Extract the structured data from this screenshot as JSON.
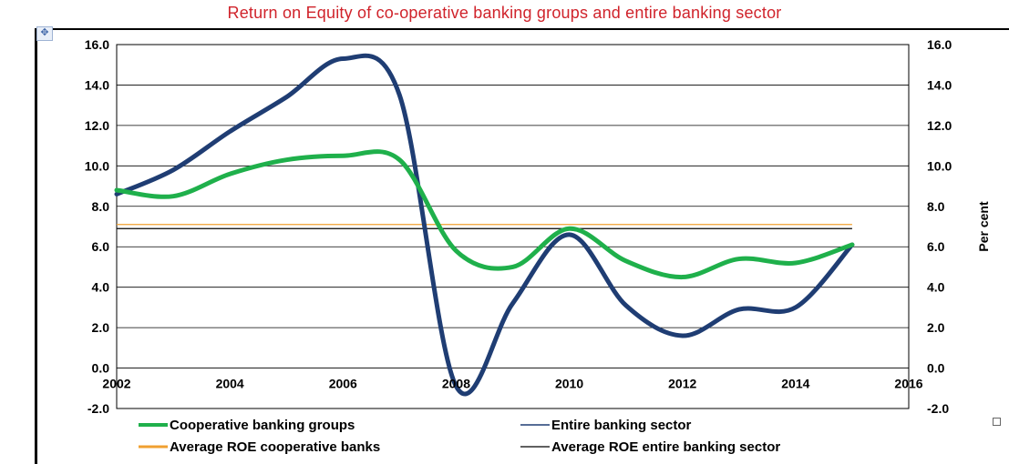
{
  "chart_data": {
    "type": "line",
    "title": "Return on Equity of co-operative banking groups and entire banking sector",
    "ylabel_right": "Per cent",
    "xlim": [
      2002,
      2016
    ],
    "ylim": [
      -2.0,
      16.0
    ],
    "x_ticks": [
      "2002",
      "2004",
      "2006",
      "2008",
      "2010",
      "2012",
      "2014",
      "2016"
    ],
    "y_ticks": [
      "16.0",
      "14.0",
      "12.0",
      "10.0",
      "8.0",
      "6.0",
      "4.0",
      "2.0",
      "0.0",
      "-2.0"
    ],
    "grid": true,
    "legend_position": "bottom",
    "series": [
      {
        "name": "Cooperative banking groups",
        "color": "#1fb04b",
        "x": [
          2002,
          2003,
          2004,
          2005,
          2006,
          2007,
          2008,
          2009,
          2010,
          2011,
          2012,
          2013,
          2014,
          2015
        ],
        "values": [
          8.8,
          8.5,
          9.6,
          10.3,
          10.5,
          10.3,
          5.8,
          5.0,
          6.9,
          5.3,
          4.5,
          5.4,
          5.2,
          6.1
        ]
      },
      {
        "name": "Entire banking sector",
        "color": "#1f3d73",
        "x": [
          2002,
          2003,
          2004,
          2005,
          2006,
          2007,
          2008,
          2009,
          2010,
          2011,
          2012,
          2013,
          2014,
          2015
        ],
        "values": [
          8.6,
          9.8,
          11.7,
          13.4,
          15.3,
          13.5,
          -0.9,
          3.2,
          6.6,
          3.1,
          1.6,
          2.9,
          3.0,
          6.1
        ]
      },
      {
        "name": "Average ROE cooperative banks",
        "color": "#f0a030",
        "x": [
          2002,
          2015
        ],
        "values": [
          7.1,
          7.1
        ]
      },
      {
        "name": "Average ROE entire banking sector",
        "color": "#000000",
        "x": [
          2002,
          2015
        ],
        "values": [
          6.9,
          6.9
        ]
      }
    ]
  }
}
